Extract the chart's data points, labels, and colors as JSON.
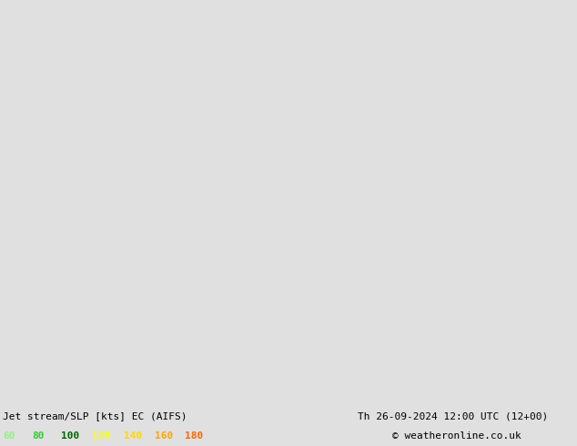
{
  "title_left": "Jet stream/SLP [kts] EC (AIFS)",
  "title_right": "Th 26-09-2024 12:00 UTC (12+00)",
  "copyright": "© weatheronline.co.uk",
  "legend_labels": [
    "60",
    "80",
    "100",
    "120",
    "140",
    "160",
    "180"
  ],
  "legend_colors": [
    "#99EE88",
    "#33CC33",
    "#006600",
    "#FFFF00",
    "#FFD700",
    "#FFA500",
    "#FF6600"
  ],
  "bg_color": "#E0E0E0",
  "map_bg_light": "#F0F0E8",
  "map_bg_gray": "#D8D8D0",
  "land_color": "#C8C8C0",
  "ocean_color": "#DCDCE0",
  "jet_colors": [
    "#C8F0B0",
    "#90DD70",
    "#40AA20",
    "#FFFF40",
    "#FFD700",
    "#FFA020"
  ],
  "jet_levels": [
    60,
    80,
    100,
    120,
    140,
    160
  ],
  "red": "#CC2222",
  "blue": "#2244CC",
  "black": "#000000",
  "figsize": [
    6.34,
    4.9
  ],
  "dpi": 100
}
